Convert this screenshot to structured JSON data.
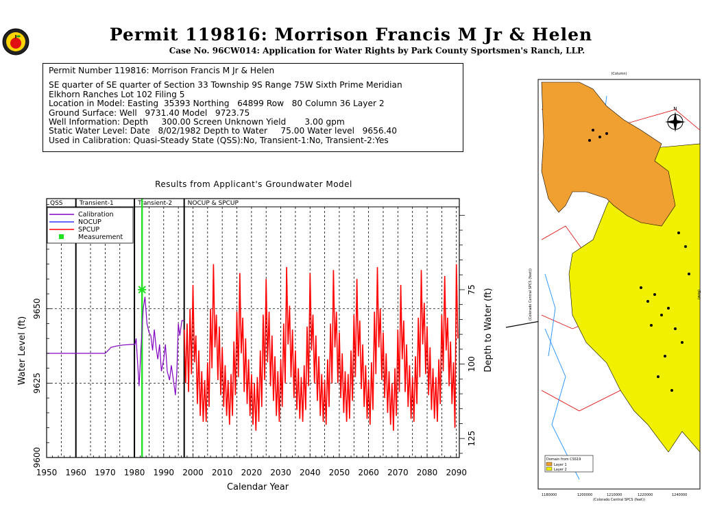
{
  "header": {
    "title": "Permit 119816:  Morrison Francis M Jr & Helen",
    "subtitle": "Case No. 96CW014: Application for Water Rights by Park County Sportsmen's Ranch, LLP."
  },
  "info": {
    "lines": [
      "Permit Number 119816: Morrison Francis M Jr & Helen",
      "",
      "SE quarter of SE quarter of Section 33 Township 9S Range 75W Sixth Prime Meridian",
      "Elkhorn Ranches Lot 102 Filing 5",
      "Location in Model: Easting  35393 Northing   64899 Row   80 Column 36 Layer 2",
      "Ground Surface: Well   9731.40 Model   9723.75",
      "Well Information: Depth     300.00 Screen Unknown Yield       3.00 gpm",
      "Static Water Level: Date   8/02/1982 Depth to Water     75.00 Water level   9656.40",
      "Used in Calibration: Quasi-Steady State (QSS):No, Transient-1:No, Transient-2:Yes"
    ]
  },
  "chart_data": {
    "type": "line",
    "title": "Results from Applicant's Groundwater Model",
    "xlabel": "Calendar Year",
    "ylabel": "Water Level (ft)",
    "y2label": "Depth to Water (ft)",
    "xlim": [
      1950,
      2091
    ],
    "ylim": [
      9600,
      9687
    ],
    "x_ticks": [
      1950,
      1960,
      1970,
      1980,
      1990,
      2000,
      2010,
      2020,
      2030,
      2040,
      2050,
      2060,
      2070,
      2080,
      2090
    ],
    "y_ticks": [
      9600,
      9625,
      9650
    ],
    "y2_ticks": [
      75,
      100,
      125
    ],
    "grid": "dashed vertical lines every 5 years; dashed horizontal at 9625 and 9650",
    "periods": [
      {
        "label": "QSS",
        "start": 1950,
        "end": 1960
      },
      {
        "label": "Transient-1",
        "start": 1960,
        "end": 1980
      },
      {
        "label": "Transient-2",
        "start": 1980,
        "end": 1997
      },
      {
        "label": "NOCUP  &  SPCUP",
        "start": 1997,
        "end": 2091
      }
    ],
    "period_dividers": [
      1960,
      1980,
      1997
    ],
    "measurement_year": 1982.6,
    "legend": {
      "position": "top-left",
      "entries": [
        {
          "name": "Calibration",
          "color": "#8000c0"
        },
        {
          "name": "NOCUP",
          "color": "#3030ff"
        },
        {
          "name": "SPCUP",
          "color": "#ff0000"
        },
        {
          "name": "Measurement",
          "color": "#22e022"
        }
      ]
    },
    "series": [
      {
        "name": "Calibration",
        "color": "#8000c0",
        "points": [
          [
            1950,
            9635
          ],
          [
            1970,
            9635
          ],
          [
            1971,
            9636
          ],
          [
            1972,
            9637
          ],
          [
            1974,
            9637.5
          ],
          [
            1976,
            9637.8
          ],
          [
            1979,
            9638
          ],
          [
            1980.2,
            9638
          ],
          [
            1980.6,
            9640
          ],
          [
            1981,
            9633
          ],
          [
            1981.6,
            9624
          ],
          [
            1982.2,
            9636
          ],
          [
            1983,
            9650
          ],
          [
            1983.6,
            9654
          ],
          [
            1984.3,
            9645
          ],
          [
            1985,
            9642
          ],
          [
            1985.6,
            9641
          ],
          [
            1986.2,
            9636
          ],
          [
            1986.8,
            9643
          ],
          [
            1987.4,
            9637
          ],
          [
            1988.0,
            9633
          ],
          [
            1988.6,
            9638
          ],
          [
            1989.2,
            9629
          ],
          [
            1990,
            9633
          ],
          [
            1990.6,
            9638
          ],
          [
            1991.2,
            9629
          ],
          [
            1992,
            9626
          ],
          [
            1992.6,
            9631
          ],
          [
            1993.3,
            9626
          ],
          [
            1994,
            9621
          ],
          [
            1994.5,
            9629
          ],
          [
            1995,
            9645
          ],
          [
            1995.5,
            9641
          ],
          [
            1996.2,
            9646
          ],
          [
            1997,
            9646
          ]
        ]
      },
      {
        "name": "SPCUP",
        "color": "#ff0000",
        "points": [
          [
            1997,
            9643
          ],
          [
            1997.5,
            9625
          ],
          [
            1998,
            9645
          ],
          [
            1998.5,
            9622
          ],
          [
            1999,
            9650
          ],
          [
            1999.5,
            9628
          ],
          [
            2000,
            9658
          ],
          [
            2000.5,
            9632
          ],
          [
            2001,
            9641
          ],
          [
            2001.5,
            9618
          ],
          [
            2002,
            9636
          ],
          [
            2002.5,
            9614
          ],
          [
            2003,
            9629
          ],
          [
            2003.5,
            9612
          ],
          [
            2004,
            9626
          ],
          [
            2004.5,
            9612
          ],
          [
            2005,
            9632
          ],
          [
            2005.5,
            9617
          ],
          [
            2006,
            9650
          ],
          [
            2006.5,
            9630
          ],
          [
            2007,
            9665
          ],
          [
            2007.5,
            9637
          ],
          [
            2008,
            9648
          ],
          [
            2008.5,
            9626
          ],
          [
            2009,
            9644
          ],
          [
            2009.5,
            9621
          ],
          [
            2010,
            9637
          ],
          [
            2010.5,
            9617
          ],
          [
            2011,
            9631
          ],
          [
            2011.5,
            9614
          ],
          [
            2012,
            9626
          ],
          [
            2012.5,
            9611
          ],
          [
            2013,
            9628
          ],
          [
            2013.5,
            9614
          ],
          [
            2014,
            9639
          ],
          [
            2014.5,
            9621
          ],
          [
            2015,
            9649
          ],
          [
            2015.5,
            9627
          ],
          [
            2016,
            9662
          ],
          [
            2016.5,
            9635
          ],
          [
            2017,
            9647
          ],
          [
            2017.5,
            9622
          ],
          [
            2018,
            9640
          ],
          [
            2018.5,
            9618
          ],
          [
            2019,
            9633
          ],
          [
            2019.5,
            9614
          ],
          [
            2020,
            9628
          ],
          [
            2020.5,
            9611
          ],
          [
            2021,
            9625
          ],
          [
            2021.5,
            9609
          ],
          [
            2022,
            9627
          ],
          [
            2022.5,
            9612
          ],
          [
            2023,
            9636
          ],
          [
            2023.5,
            9617
          ],
          [
            2024,
            9648
          ],
          [
            2024.5,
            9626
          ],
          [
            2025,
            9660
          ],
          [
            2025.5,
            9632
          ],
          [
            2026,
            9649
          ],
          [
            2026.5,
            9624
          ],
          [
            2027,
            9641
          ],
          [
            2027.5,
            9619
          ],
          [
            2028,
            9634
          ],
          [
            2028.5,
            9614
          ],
          [
            2029,
            9629
          ],
          [
            2029.5,
            9612
          ],
          [
            2030,
            9633
          ],
          [
            2030.5,
            9617
          ],
          [
            2031,
            9645
          ],
          [
            2031.5,
            9625
          ],
          [
            2032,
            9664
          ],
          [
            2032.5,
            9638
          ],
          [
            2033,
            9651
          ],
          [
            2033.5,
            9627
          ],
          [
            2034,
            9643
          ],
          [
            2034.5,
            9620
          ],
          [
            2035,
            9636
          ],
          [
            2035.5,
            9616
          ],
          [
            2036,
            9630
          ],
          [
            2036.5,
            9613
          ],
          [
            2037,
            9627
          ],
          [
            2037.5,
            9612
          ],
          [
            2038,
            9631
          ],
          [
            2038.5,
            9616
          ],
          [
            2039,
            9644
          ],
          [
            2039.5,
            9624
          ],
          [
            2040,
            9662
          ],
          [
            2040.5,
            9636
          ],
          [
            2041,
            9648
          ],
          [
            2041.5,
            9625
          ],
          [
            2042,
            9641
          ],
          [
            2042.5,
            9619
          ],
          [
            2043,
            9634
          ],
          [
            2043.5,
            9614
          ],
          [
            2044,
            9628
          ],
          [
            2044.5,
            9612
          ],
          [
            2045,
            9626
          ],
          [
            2045.5,
            9611
          ],
          [
            2046,
            9633
          ],
          [
            2046.5,
            9617
          ],
          [
            2047,
            9645
          ],
          [
            2047.5,
            9625
          ],
          [
            2048,
            9663
          ],
          [
            2048.5,
            9637
          ],
          [
            2049,
            9649
          ],
          [
            2049.5,
            9625
          ],
          [
            2050,
            9642
          ],
          [
            2050.5,
            9620
          ],
          [
            2051,
            9635
          ],
          [
            2051.5,
            9615
          ],
          [
            2052,
            9629
          ],
          [
            2052.5,
            9612
          ],
          [
            2053,
            9628
          ],
          [
            2053.5,
            9613
          ],
          [
            2054,
            9636
          ],
          [
            2054.5,
            9619
          ],
          [
            2055,
            9648
          ],
          [
            2055.5,
            9627
          ],
          [
            2056,
            9660
          ],
          [
            2056.5,
            9634
          ],
          [
            2057,
            9646
          ],
          [
            2057.5,
            9623
          ],
          [
            2058,
            9638
          ],
          [
            2058.5,
            9617
          ],
          [
            2059,
            9631
          ],
          [
            2059.5,
            9613
          ],
          [
            2060,
            9626
          ],
          [
            2060.5,
            9611
          ],
          [
            2061,
            9632
          ],
          [
            2061.5,
            9616
          ],
          [
            2062,
            9649
          ],
          [
            2062.5,
            9628
          ],
          [
            2063,
            9664
          ],
          [
            2063.5,
            9637
          ],
          [
            2064,
            9650
          ],
          [
            2064.5,
            9626
          ],
          [
            2065,
            9642
          ],
          [
            2065.5,
            9620
          ],
          [
            2066,
            9635
          ],
          [
            2066.5,
            9615
          ],
          [
            2067,
            9629
          ],
          [
            2067.5,
            9611
          ],
          [
            2068,
            9625
          ],
          [
            2068.5,
            9609
          ],
          [
            2069,
            9630
          ],
          [
            2069.5,
            9614
          ],
          [
            2070,
            9643
          ],
          [
            2070.5,
            9622
          ],
          [
            2071,
            9658
          ],
          [
            2071.5,
            9633
          ],
          [
            2072,
            9646
          ],
          [
            2072.5,
            9622
          ],
          [
            2073,
            9638
          ],
          [
            2073.5,
            9617
          ],
          [
            2074,
            9631
          ],
          [
            2074.5,
            9613
          ],
          [
            2075,
            9627
          ],
          [
            2075.5,
            9612
          ],
          [
            2076,
            9634
          ],
          [
            2076.5,
            9618
          ],
          [
            2077,
            9647
          ],
          [
            2077.5,
            9627
          ],
          [
            2078,
            9663
          ],
          [
            2078.5,
            9638
          ],
          [
            2079,
            9652
          ],
          [
            2079.5,
            9628
          ],
          [
            2080,
            9644
          ],
          [
            2080.5,
            9621
          ],
          [
            2081,
            9637
          ],
          [
            2081.5,
            9616
          ],
          [
            2082,
            9630
          ],
          [
            2082.5,
            9613
          ],
          [
            2083,
            9627
          ],
          [
            2083.5,
            9612
          ],
          [
            2084,
            9633
          ],
          [
            2084.5,
            9618
          ],
          [
            2085,
            9648
          ],
          [
            2085.5,
            9629
          ],
          [
            2086,
            9661
          ],
          [
            2086.5,
            9636
          ],
          [
            2087,
            9647
          ],
          [
            2087.5,
            9624
          ],
          [
            2088,
            9639
          ],
          [
            2088.5,
            9618
          ],
          [
            2089,
            9632
          ],
          [
            2089.5,
            9610
          ],
          [
            2090,
            9665
          ],
          [
            2090.5,
            9640
          ]
        ]
      }
    ]
  },
  "map": {
    "north_arrow_label": "N",
    "legend_title": "Domain from CSS19",
    "legend_items": [
      "Layer 1",
      "Layer 2"
    ],
    "bottom_axis_label": "(Colorado Central SPCS (feet))",
    "left_axis_label": "(Colorado Central SPCS (feet))",
    "top_axis_label": "(Column)",
    "right_axis_label": "(Row)",
    "bottom_ticks": [
      "1180000",
      "1200000",
      "1210000",
      "1220000",
      "1240000"
    ]
  },
  "colors": {
    "spcup": "#ff0000",
    "calibration": "#8000c0",
    "nocup": "#3030ff",
    "measurement": "#22e022",
    "layer1": "#f0a030",
    "layer2": "#f0f000"
  }
}
